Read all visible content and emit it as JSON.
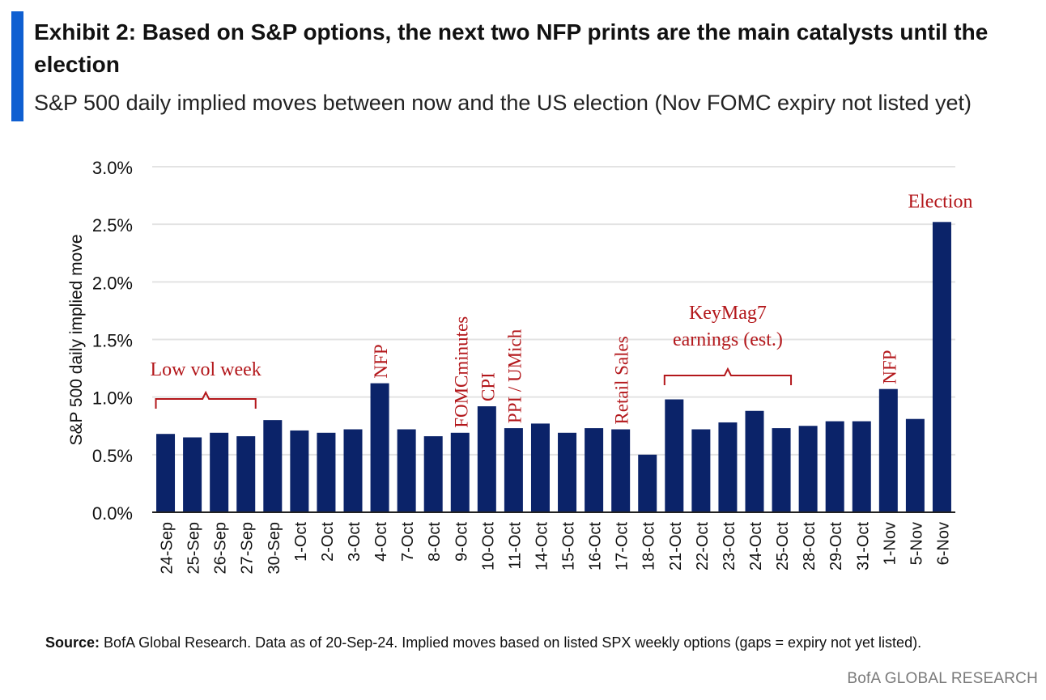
{
  "header": {
    "title": "Exhibit 2: Based on S&P options, the next two NFP prints are the main catalysts until the election",
    "subtitle": "S&P 500 daily implied moves between now and the US election (Nov FOMC expiry not listed yet)"
  },
  "footer": {
    "source_label": "Source:",
    "source_text": "BofA Global Research. Data as of 20-Sep-24. Implied moves based on listed SPX weekly options (gaps = expiry not yet listed).",
    "brand": "BofA GLOBAL RESEARCH"
  },
  "colors": {
    "accent": "#0f5fd1",
    "bar": "#0b2369",
    "annotation": "#b3171b",
    "grid": "#e3e3e3"
  },
  "chart_data": {
    "type": "bar",
    "ylabel": "S&P 500 daily implied move",
    "ylim": [
      0,
      0.03
    ],
    "yticks": [
      "0.0%",
      "0.5%",
      "1.0%",
      "1.5%",
      "2.0%",
      "2.5%",
      "3.0%"
    ],
    "grid": true,
    "categories": [
      "24-Sep",
      "25-Sep",
      "26-Sep",
      "27-Sep",
      "30-Sep",
      "1-Oct",
      "2-Oct",
      "3-Oct",
      "4-Oct",
      "7-Oct",
      "8-Oct",
      "9-Oct",
      "10-Oct",
      "11-Oct",
      "14-Oct",
      "15-Oct",
      "16-Oct",
      "17-Oct",
      "18-Oct",
      "21-Oct",
      "22-Oct",
      "23-Oct",
      "24-Oct",
      "25-Oct",
      "28-Oct",
      "29-Oct",
      "31-Oct",
      "1-Nov",
      "5-Nov",
      "6-Nov"
    ],
    "values": [
      0.0068,
      0.0065,
      0.0069,
      0.0066,
      0.008,
      0.0071,
      0.0069,
      0.0072,
      0.0112,
      0.0072,
      0.0066,
      0.0069,
      0.0092,
      0.0073,
      0.0077,
      0.0069,
      0.0073,
      0.0072,
      0.005,
      0.0098,
      0.0072,
      0.0078,
      0.0088,
      0.0073,
      0.0075,
      0.0079,
      0.0079,
      0.0107,
      0.0081,
      0.0252
    ],
    "annotations": [
      {
        "text": "Low vol week",
        "bracket": [
          0,
          3
        ]
      },
      {
        "text": "NFP",
        "at": 8,
        "vertical": true
      },
      {
        "text": "FOMCminutes",
        "at": 11,
        "vertical": true
      },
      {
        "text": "CPI",
        "at": 12,
        "vertical": true
      },
      {
        "text": "PPI / UMich",
        "at": 13,
        "vertical": true
      },
      {
        "text": "Retail Sales",
        "at": 17,
        "vertical": true
      },
      {
        "text": "KeyMag7",
        "text2": "earnings (est.)",
        "bracket": [
          19,
          23
        ]
      },
      {
        "text": "NFP",
        "at": 27,
        "vertical": true
      },
      {
        "text": "Election",
        "at": 29,
        "vertical": false
      }
    ]
  }
}
